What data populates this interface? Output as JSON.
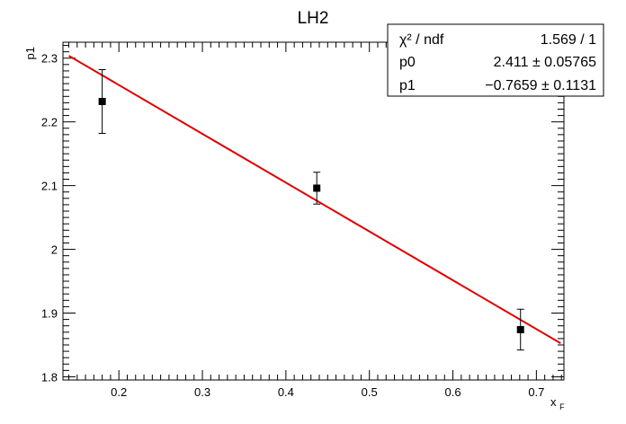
{
  "chart_data": {
    "type": "scatter",
    "title": "LH2",
    "xlabel": "x",
    "xlabel_sub": "F",
    "ylabel": "p1",
    "xlim": [
      0.133,
      0.733
    ],
    "ylim": [
      1.795,
      2.325
    ],
    "x_ticks": [
      "0.2",
      "0.3",
      "0.4",
      "0.5",
      "0.6",
      "0.7"
    ],
    "y_ticks": [
      "1.8",
      "1.9",
      "2",
      "2.1",
      "2.2",
      "2.3"
    ],
    "points": [
      {
        "x": 0.18,
        "y": 2.232,
        "yerr_low": 0.05,
        "yerr_high": 0.05
      },
      {
        "x": 0.437,
        "y": 2.096,
        "yerr_low": 0.025,
        "yerr_high": 0.025
      },
      {
        "x": 0.681,
        "y": 1.874,
        "yerr_low": 0.032,
        "yerr_high": 0.032
      }
    ],
    "fit": {
      "p0": 2.411,
      "p1": -0.7659,
      "color": "#dd0000"
    },
    "stats": {
      "rows": [
        {
          "label": "χ² / ndf",
          "value": "1.569 / 1"
        },
        {
          "label": "p0",
          "value": "2.411 ± 0.05765"
        },
        {
          "label": "p1",
          "value": "−0.7659 ± 0.1131"
        }
      ]
    },
    "grid": false
  }
}
